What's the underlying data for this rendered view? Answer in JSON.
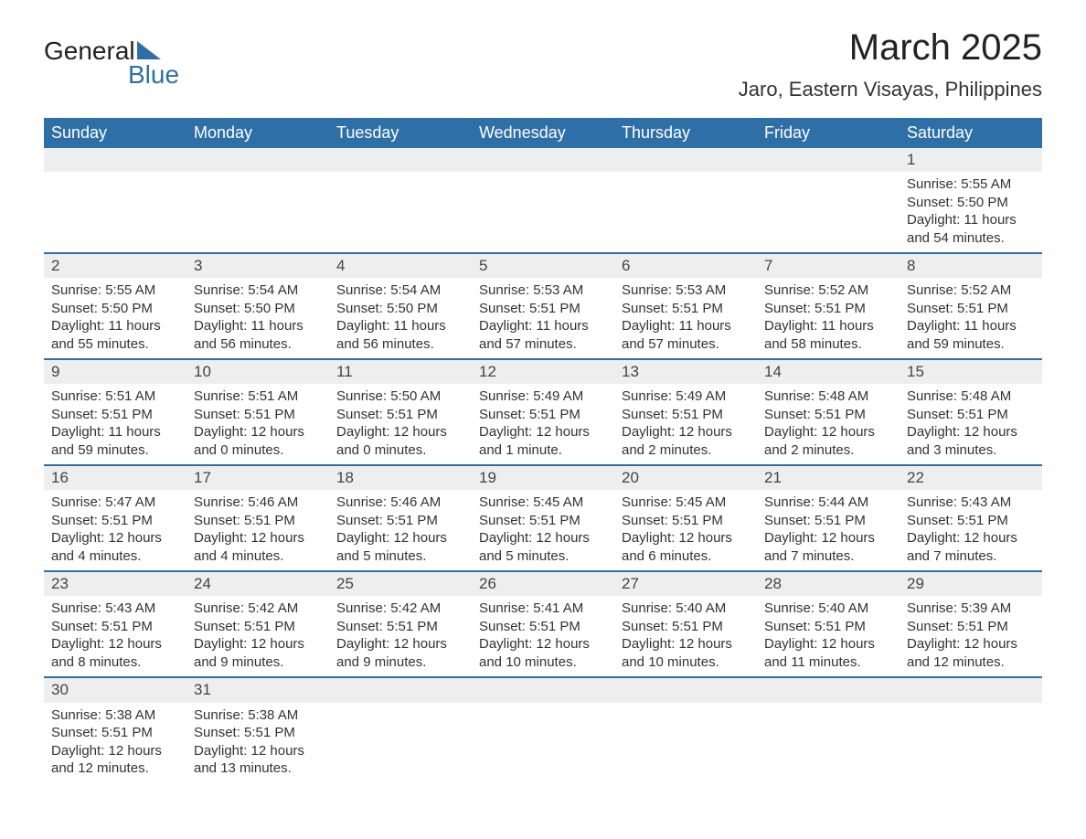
{
  "logo": {
    "text1": "General",
    "text2": "Blue",
    "tri_color": "#2f6fa7"
  },
  "title": "March 2025",
  "location": "Jaro, Eastern Visayas, Philippines",
  "colors": {
    "header_bg": "#2f6fa7",
    "header_text": "#ffffff",
    "daynum_bg": "#eeeeee",
    "row_border": "#2f6fa7",
    "text": "#333333"
  },
  "weekdays": [
    "Sunday",
    "Monday",
    "Tuesday",
    "Wednesday",
    "Thursday",
    "Friday",
    "Saturday"
  ],
  "weeks": [
    [
      null,
      null,
      null,
      null,
      null,
      null,
      {
        "n": "1",
        "sr": "Sunrise: 5:55 AM",
        "ss": "Sunset: 5:50 PM",
        "d1": "Daylight: 11 hours",
        "d2": "and 54 minutes."
      }
    ],
    [
      {
        "n": "2",
        "sr": "Sunrise: 5:55 AM",
        "ss": "Sunset: 5:50 PM",
        "d1": "Daylight: 11 hours",
        "d2": "and 55 minutes."
      },
      {
        "n": "3",
        "sr": "Sunrise: 5:54 AM",
        "ss": "Sunset: 5:50 PM",
        "d1": "Daylight: 11 hours",
        "d2": "and 56 minutes."
      },
      {
        "n": "4",
        "sr": "Sunrise: 5:54 AM",
        "ss": "Sunset: 5:50 PM",
        "d1": "Daylight: 11 hours",
        "d2": "and 56 minutes."
      },
      {
        "n": "5",
        "sr": "Sunrise: 5:53 AM",
        "ss": "Sunset: 5:51 PM",
        "d1": "Daylight: 11 hours",
        "d2": "and 57 minutes."
      },
      {
        "n": "6",
        "sr": "Sunrise: 5:53 AM",
        "ss": "Sunset: 5:51 PM",
        "d1": "Daylight: 11 hours",
        "d2": "and 57 minutes."
      },
      {
        "n": "7",
        "sr": "Sunrise: 5:52 AM",
        "ss": "Sunset: 5:51 PM",
        "d1": "Daylight: 11 hours",
        "d2": "and 58 minutes."
      },
      {
        "n": "8",
        "sr": "Sunrise: 5:52 AM",
        "ss": "Sunset: 5:51 PM",
        "d1": "Daylight: 11 hours",
        "d2": "and 59 minutes."
      }
    ],
    [
      {
        "n": "9",
        "sr": "Sunrise: 5:51 AM",
        "ss": "Sunset: 5:51 PM",
        "d1": "Daylight: 11 hours",
        "d2": "and 59 minutes."
      },
      {
        "n": "10",
        "sr": "Sunrise: 5:51 AM",
        "ss": "Sunset: 5:51 PM",
        "d1": "Daylight: 12 hours",
        "d2": "and 0 minutes."
      },
      {
        "n": "11",
        "sr": "Sunrise: 5:50 AM",
        "ss": "Sunset: 5:51 PM",
        "d1": "Daylight: 12 hours",
        "d2": "and 0 minutes."
      },
      {
        "n": "12",
        "sr": "Sunrise: 5:49 AM",
        "ss": "Sunset: 5:51 PM",
        "d1": "Daylight: 12 hours",
        "d2": "and 1 minute."
      },
      {
        "n": "13",
        "sr": "Sunrise: 5:49 AM",
        "ss": "Sunset: 5:51 PM",
        "d1": "Daylight: 12 hours",
        "d2": "and 2 minutes."
      },
      {
        "n": "14",
        "sr": "Sunrise: 5:48 AM",
        "ss": "Sunset: 5:51 PM",
        "d1": "Daylight: 12 hours",
        "d2": "and 2 minutes."
      },
      {
        "n": "15",
        "sr": "Sunrise: 5:48 AM",
        "ss": "Sunset: 5:51 PM",
        "d1": "Daylight: 12 hours",
        "d2": "and 3 minutes."
      }
    ],
    [
      {
        "n": "16",
        "sr": "Sunrise: 5:47 AM",
        "ss": "Sunset: 5:51 PM",
        "d1": "Daylight: 12 hours",
        "d2": "and 4 minutes."
      },
      {
        "n": "17",
        "sr": "Sunrise: 5:46 AM",
        "ss": "Sunset: 5:51 PM",
        "d1": "Daylight: 12 hours",
        "d2": "and 4 minutes."
      },
      {
        "n": "18",
        "sr": "Sunrise: 5:46 AM",
        "ss": "Sunset: 5:51 PM",
        "d1": "Daylight: 12 hours",
        "d2": "and 5 minutes."
      },
      {
        "n": "19",
        "sr": "Sunrise: 5:45 AM",
        "ss": "Sunset: 5:51 PM",
        "d1": "Daylight: 12 hours",
        "d2": "and 5 minutes."
      },
      {
        "n": "20",
        "sr": "Sunrise: 5:45 AM",
        "ss": "Sunset: 5:51 PM",
        "d1": "Daylight: 12 hours",
        "d2": "and 6 minutes."
      },
      {
        "n": "21",
        "sr": "Sunrise: 5:44 AM",
        "ss": "Sunset: 5:51 PM",
        "d1": "Daylight: 12 hours",
        "d2": "and 7 minutes."
      },
      {
        "n": "22",
        "sr": "Sunrise: 5:43 AM",
        "ss": "Sunset: 5:51 PM",
        "d1": "Daylight: 12 hours",
        "d2": "and 7 minutes."
      }
    ],
    [
      {
        "n": "23",
        "sr": "Sunrise: 5:43 AM",
        "ss": "Sunset: 5:51 PM",
        "d1": "Daylight: 12 hours",
        "d2": "and 8 minutes."
      },
      {
        "n": "24",
        "sr": "Sunrise: 5:42 AM",
        "ss": "Sunset: 5:51 PM",
        "d1": "Daylight: 12 hours",
        "d2": "and 9 minutes."
      },
      {
        "n": "25",
        "sr": "Sunrise: 5:42 AM",
        "ss": "Sunset: 5:51 PM",
        "d1": "Daylight: 12 hours",
        "d2": "and 9 minutes."
      },
      {
        "n": "26",
        "sr": "Sunrise: 5:41 AM",
        "ss": "Sunset: 5:51 PM",
        "d1": "Daylight: 12 hours",
        "d2": "and 10 minutes."
      },
      {
        "n": "27",
        "sr": "Sunrise: 5:40 AM",
        "ss": "Sunset: 5:51 PM",
        "d1": "Daylight: 12 hours",
        "d2": "and 10 minutes."
      },
      {
        "n": "28",
        "sr": "Sunrise: 5:40 AM",
        "ss": "Sunset: 5:51 PM",
        "d1": "Daylight: 12 hours",
        "d2": "and 11 minutes."
      },
      {
        "n": "29",
        "sr": "Sunrise: 5:39 AM",
        "ss": "Sunset: 5:51 PM",
        "d1": "Daylight: 12 hours",
        "d2": "and 12 minutes."
      }
    ],
    [
      {
        "n": "30",
        "sr": "Sunrise: 5:38 AM",
        "ss": "Sunset: 5:51 PM",
        "d1": "Daylight: 12 hours",
        "d2": "and 12 minutes."
      },
      {
        "n": "31",
        "sr": "Sunrise: 5:38 AM",
        "ss": "Sunset: 5:51 PM",
        "d1": "Daylight: 12 hours",
        "d2": "and 13 minutes."
      },
      null,
      null,
      null,
      null,
      null
    ]
  ]
}
